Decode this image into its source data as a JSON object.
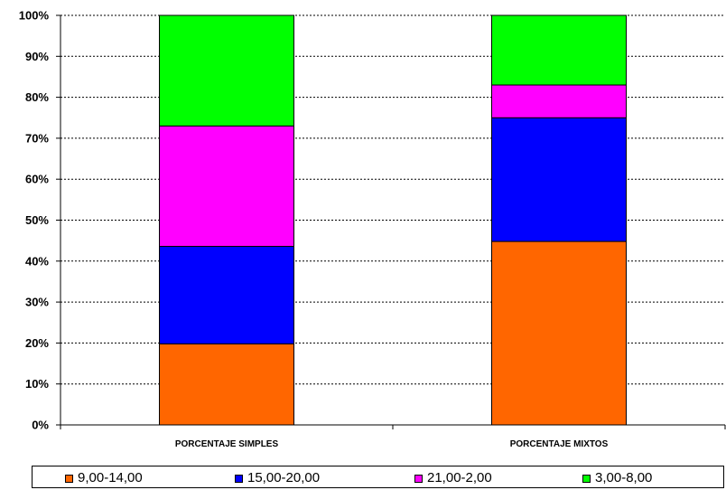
{
  "chart_data": {
    "type": "bar",
    "stacked": true,
    "categories": [
      "PORCENTAJE SIMPLES",
      "PORCENTAJE MIXTOS"
    ],
    "series": [
      {
        "name": "9,00-14,00",
        "color": "#FF6600",
        "values": [
          19.8,
          44.8
        ]
      },
      {
        "name": "15,00-20,00",
        "color": "#0000FF",
        "values": [
          23.8,
          30.2
        ]
      },
      {
        "name": "21,00-2,00",
        "color": "#FF00FF",
        "values": [
          29.4,
          8.0
        ]
      },
      {
        "name": "3,00-8,00",
        "color": "#00FF00",
        "values": [
          27.0,
          17.0
        ]
      }
    ],
    "ylim": [
      0,
      100
    ],
    "yticks": [
      0,
      10,
      20,
      30,
      40,
      50,
      60,
      70,
      80,
      90,
      100
    ],
    "ytick_labels": [
      "0%",
      "10%",
      "20%",
      "30%",
      "40%",
      "50%",
      "60%",
      "70%",
      "80%",
      "90%",
      "100%"
    ],
    "grid": true,
    "legend_position": "bottom",
    "title": "",
    "xlabel": "",
    "ylabel": ""
  }
}
